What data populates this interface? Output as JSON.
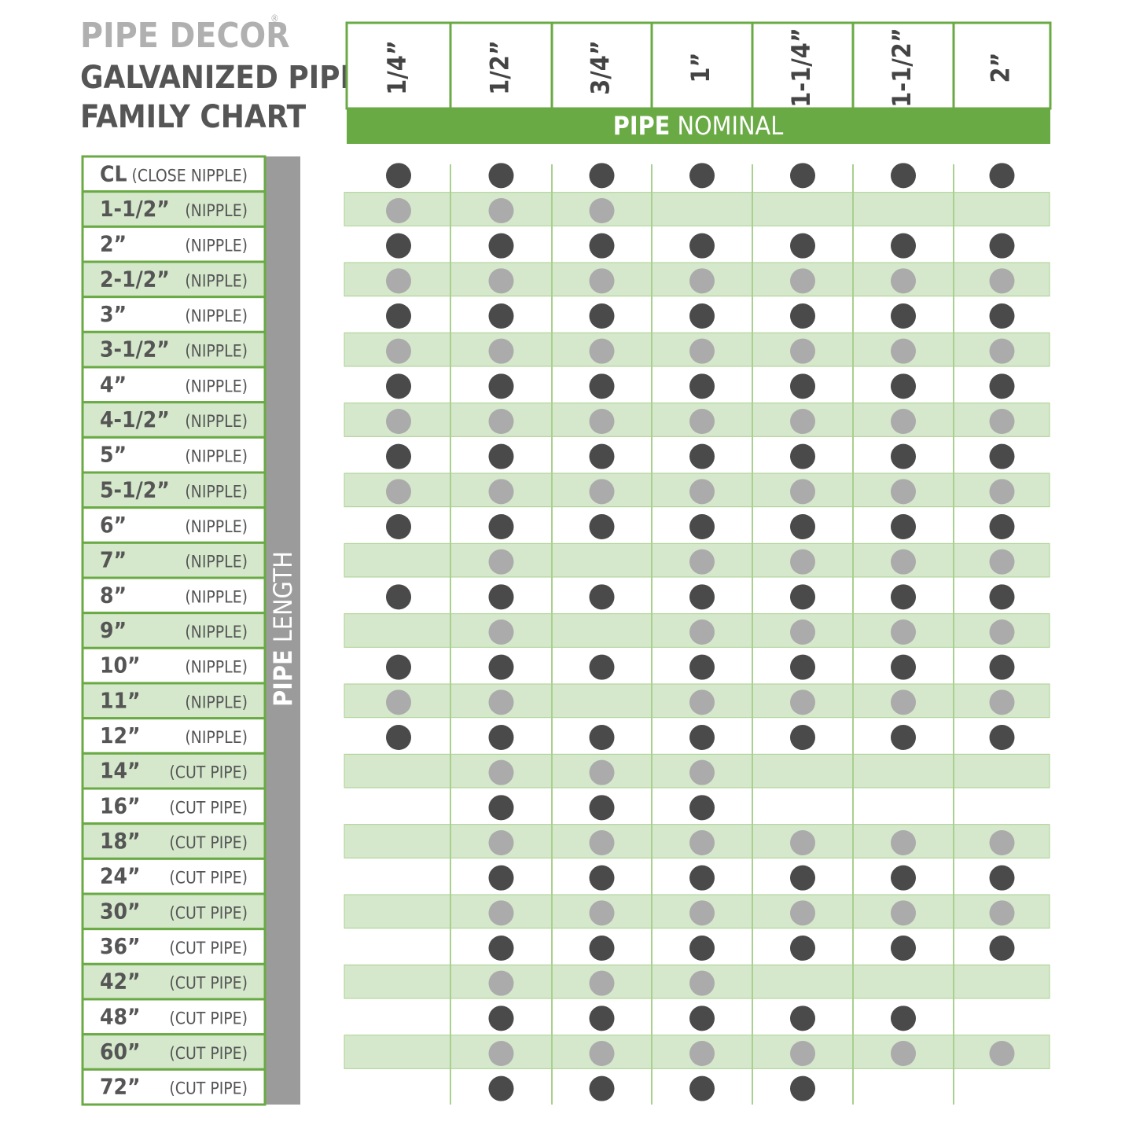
{
  "header": {
    "brand": "PIPE DECOR",
    "brand_mark": "®",
    "title_line1": "GALVANIZED PIPE",
    "title_line2": "FAMILY CHART"
  },
  "table": {
    "column_axis": {
      "bold": "PIPE",
      "rest": "NOMINAL"
    },
    "row_axis": {
      "bold": "PIPE",
      "rest": "LENGTH"
    },
    "columns": [
      "1/4”",
      "1/2”",
      "3/4”",
      "1”",
      "1-1/4”",
      "1-1/2”",
      "2”"
    ],
    "rows": [
      {
        "length": "CL",
        "type": "(CLOSE NIPPLE)",
        "available": [
          true,
          true,
          true,
          true,
          true,
          true,
          true
        ]
      },
      {
        "length": "1-1/2”",
        "type": "(NIPPLE)",
        "available": [
          true,
          true,
          true,
          false,
          false,
          false,
          false
        ]
      },
      {
        "length": "2”",
        "type": "(NIPPLE)",
        "available": [
          true,
          true,
          true,
          true,
          true,
          true,
          true
        ]
      },
      {
        "length": "2-1/2”",
        "type": "(NIPPLE)",
        "available": [
          true,
          true,
          true,
          true,
          true,
          true,
          true
        ]
      },
      {
        "length": "3”",
        "type": "(NIPPLE)",
        "available": [
          true,
          true,
          true,
          true,
          true,
          true,
          true
        ]
      },
      {
        "length": "3-1/2”",
        "type": "(NIPPLE)",
        "available": [
          true,
          true,
          true,
          true,
          true,
          true,
          true
        ]
      },
      {
        "length": "4”",
        "type": "(NIPPLE)",
        "available": [
          true,
          true,
          true,
          true,
          true,
          true,
          true
        ]
      },
      {
        "length": "4-1/2”",
        "type": "(NIPPLE)",
        "available": [
          true,
          true,
          true,
          true,
          true,
          true,
          true
        ]
      },
      {
        "length": "5”",
        "type": "(NIPPLE)",
        "available": [
          true,
          true,
          true,
          true,
          true,
          true,
          true
        ]
      },
      {
        "length": "5-1/2”",
        "type": "(NIPPLE)",
        "available": [
          true,
          true,
          true,
          true,
          true,
          true,
          true
        ]
      },
      {
        "length": "6”",
        "type": "(NIPPLE)",
        "available": [
          true,
          true,
          true,
          true,
          true,
          true,
          true
        ]
      },
      {
        "length": "7”",
        "type": "(NIPPLE)",
        "available": [
          false,
          true,
          false,
          true,
          true,
          true,
          true
        ]
      },
      {
        "length": "8”",
        "type": "(NIPPLE)",
        "available": [
          true,
          true,
          true,
          true,
          true,
          true,
          true
        ]
      },
      {
        "length": "9”",
        "type": "(NIPPLE)",
        "available": [
          false,
          true,
          false,
          true,
          true,
          true,
          true
        ]
      },
      {
        "length": "10”",
        "type": "(NIPPLE)",
        "available": [
          true,
          true,
          true,
          true,
          true,
          true,
          true
        ]
      },
      {
        "length": "11”",
        "type": "(NIPPLE)",
        "available": [
          true,
          true,
          false,
          true,
          true,
          true,
          true
        ]
      },
      {
        "length": "12”",
        "type": "(NIPPLE)",
        "available": [
          true,
          true,
          true,
          true,
          true,
          true,
          true
        ]
      },
      {
        "length": "14”",
        "type": "(CUT PIPE)",
        "available": [
          false,
          true,
          true,
          true,
          false,
          false,
          false
        ]
      },
      {
        "length": "16”",
        "type": "(CUT PIPE)",
        "available": [
          false,
          true,
          true,
          true,
          false,
          false,
          false
        ]
      },
      {
        "length": "18”",
        "type": "(CUT PIPE)",
        "available": [
          false,
          true,
          true,
          true,
          true,
          true,
          true
        ]
      },
      {
        "length": "24”",
        "type": "(CUT PIPE)",
        "available": [
          false,
          true,
          true,
          true,
          true,
          true,
          true
        ]
      },
      {
        "length": "30”",
        "type": "(CUT PIPE)",
        "available": [
          false,
          true,
          true,
          true,
          true,
          true,
          true
        ]
      },
      {
        "length": "36”",
        "type": "(CUT PIPE)",
        "available": [
          false,
          true,
          true,
          true,
          true,
          true,
          true
        ]
      },
      {
        "length": "42”",
        "type": "(CUT PIPE)",
        "available": [
          false,
          true,
          true,
          true,
          false,
          false,
          false
        ]
      },
      {
        "length": "48”",
        "type": "(CUT PIPE)",
        "available": [
          false,
          true,
          true,
          true,
          true,
          true,
          false
        ]
      },
      {
        "length": "60”",
        "type": "(CUT PIPE)",
        "available": [
          false,
          true,
          true,
          true,
          true,
          true,
          true
        ]
      },
      {
        "length": "72”",
        "type": "(CUT PIPE)",
        "available": [
          false,
          true,
          true,
          true,
          true,
          false,
          false
        ]
      }
    ]
  }
}
